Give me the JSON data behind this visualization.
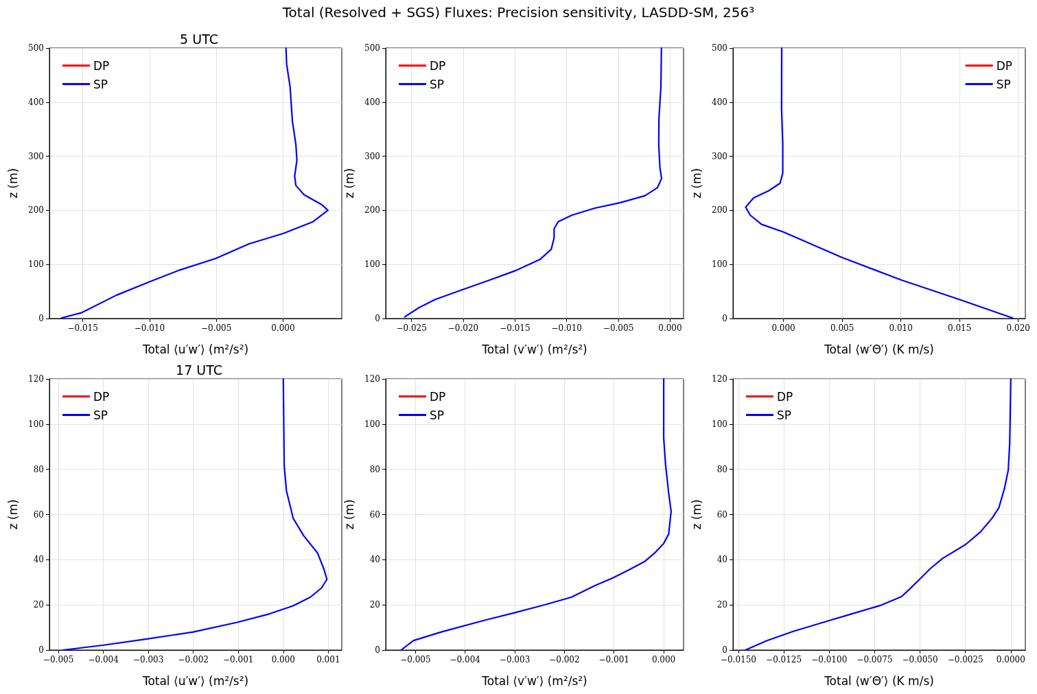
{
  "chart_data": [
    {
      "type": "line",
      "title": "5 UTC",
      "annotations": [
        "Total (Resolved + SGS) Fluxes: Precision sensitivity, LASDD-SM, 256³"
      ],
      "xlabel": "Total ⟨u′w′⟩ (m²/s²)",
      "ylabel": "z (m)",
      "xlim": [
        -0.0175,
        0.0044
      ],
      "ylim": [
        0,
        500
      ],
      "xticks": [
        {
          "value": -0.015,
          "label": "−0.015"
        },
        {
          "value": -0.01,
          "label": "−0.010"
        },
        {
          "value": -0.005,
          "label": "−0.005"
        },
        {
          "value": 0,
          "label": "0.000"
        }
      ],
      "yticks": [
        0,
        100,
        200,
        300,
        400,
        500
      ],
      "grid": true,
      "legend": "top left",
      "marker": "none",
      "line_style": "solid",
      "series": [
        {
          "name": "DP",
          "color": "#ff0000"
        },
        {
          "name": "SP",
          "color": "#0000ff",
          "x": [
            -0.0166,
            -0.01506,
            -0.01249,
            -0.01,
            -0.0077,
            -0.00504,
            -0.00255,
            0.0,
            0.00225,
            0.00336,
            0.00293,
            0.00156,
            0.00096,
            0.00087,
            0.00104,
            0.00096,
            0.0007,
            0.00053,
            0.00027,
            0.00022
          ],
          "values": [
            1,
            11,
            43,
            68,
            90,
            111,
            138,
            157,
            179,
            200,
            210,
            229,
            246,
            263,
            293,
            322,
            365,
            428,
            470,
            500
          ]
        }
      ]
    },
    {
      "type": "line",
      "xlabel": "Total ⟨v′w′⟩ (m²/s²)",
      "ylabel": "z (m)",
      "xlim": [
        -0.0275,
        0.0013
      ],
      "ylim": [
        0,
        500
      ],
      "xticks": [
        {
          "value": -0.025,
          "label": "−0.025"
        },
        {
          "value": -0.02,
          "label": "−0.020"
        },
        {
          "value": -0.015,
          "label": "−0.015"
        },
        {
          "value": -0.01,
          "label": "−0.010"
        },
        {
          "value": -0.005,
          "label": "−0.005"
        },
        {
          "value": 0,
          "label": "0.000"
        }
      ],
      "yticks": [
        0,
        100,
        200,
        300,
        400,
        500
      ],
      "grid": true,
      "legend": "top left",
      "marker": "none",
      "line_style": "solid",
      "series": [
        {
          "name": "DP",
          "color": "#ff0000"
        },
        {
          "name": "SP",
          "color": "#0000ff",
          "x": [
            -0.02566,
            -0.02429,
            -0.02275,
            -0.01999,
            -0.01745,
            -0.01502,
            -0.01259,
            -0.01149,
            -0.01122,
            -0.01122,
            -0.01082,
            -0.0095,
            -0.00729,
            -0.00486,
            -0.00243,
            -0.00122,
            -0.00082,
            -0.00099,
            -0.0011,
            -0.00108,
            -0.00089,
            -0.00084
          ],
          "values": [
            3,
            20,
            35,
            54,
            71,
            88,
            109,
            128,
            149,
            166,
            179,
            191,
            204,
            214,
            227,
            242,
            259,
            280,
            322,
            369,
            428,
            500
          ]
        }
      ]
    },
    {
      "type": "line",
      "xlabel": "Total ⟨w′Θ′⟩ (K m/s)",
      "ylabel": "z (m)",
      "xlim": [
        -0.0043,
        0.0206
      ],
      "ylim": [
        0,
        500
      ],
      "xticks": [
        {
          "value": 0,
          "label": "0.000"
        },
        {
          "value": 0.005,
          "label": "0.005"
        },
        {
          "value": 0.01,
          "label": "0.010"
        },
        {
          "value": 0.015,
          "label": "0.015"
        },
        {
          "value": 0.02,
          "label": "0.020"
        }
      ],
      "yticks": [
        0,
        100,
        200,
        300,
        400,
        500
      ],
      "grid": true,
      "legend": "top right",
      "marker": "none",
      "line_style": "solid",
      "series": [
        {
          "name": "DP",
          "color": "#ff0000"
        },
        {
          "name": "SP",
          "color": "#0000ff",
          "x": [
            0.01951,
            0.01502,
            0.01005,
            0.00498,
            0.0,
            -0.00186,
            -0.00283,
            -0.00322,
            -0.00254,
            -0.00127,
            -0.00029,
            -6e-05,
            -6e-05,
            -0.00016,
            -0.00015
          ],
          "values": [
            1,
            35,
            71,
            113,
            160,
            174,
            191,
            206,
            223,
            236,
            250,
            269,
            322,
            386,
            500
          ]
        }
      ]
    },
    {
      "type": "line",
      "title": "17 UTC",
      "xlabel": "Total ⟨u′w′⟩ (m²/s²)",
      "ylabel": "z (m)",
      "xlim": [
        -0.0052,
        0.0013
      ],
      "ylim": [
        0,
        120
      ],
      "xticks": [
        {
          "value": -0.005,
          "label": "−0.005"
        },
        {
          "value": -0.004,
          "label": "−0.004"
        },
        {
          "value": -0.003,
          "label": "−0.003"
        },
        {
          "value": -0.002,
          "label": "−0.002"
        },
        {
          "value": -0.001,
          "label": "−0.001"
        },
        {
          "value": 0,
          "label": "0.000"
        },
        {
          "value": 0.001,
          "label": "0.001"
        }
      ],
      "yticks": [
        0,
        20,
        40,
        60,
        80,
        100,
        120
      ],
      "grid": true,
      "legend": "top left",
      "marker": "none",
      "line_style": "solid",
      "series": [
        {
          "name": "DP",
          "color": "#ff0000"
        },
        {
          "name": "SP",
          "color": "#0000ff",
          "x": [
            -0.0049,
            -0.00399,
            -0.00301,
            -0.002,
            -0.00102,
            -0.00031,
            0.00022,
            0.0006,
            0.00085,
            0.00097,
            0.0009,
            0.00076,
            0.00045,
            0.00022,
            7e-05,
            2e-05,
            0.0
          ],
          "values": [
            0,
            2.2,
            5,
            8,
            12.3,
            16,
            19.6,
            23.4,
            27.5,
            31.3,
            36,
            43,
            50.7,
            58.3,
            70.5,
            81.6,
            120
          ]
        }
      ]
    },
    {
      "type": "line",
      "xlabel": "Total ⟨v′w′⟩ (m²/s²)",
      "ylabel": "z (m)",
      "xlim": [
        -0.0056,
        0.0004
      ],
      "ylim": [
        0,
        120
      ],
      "xticks": [
        {
          "value": -0.005,
          "label": "−0.005"
        },
        {
          "value": -0.004,
          "label": "−0.004"
        },
        {
          "value": -0.003,
          "label": "−0.003"
        },
        {
          "value": -0.002,
          "label": "−0.002"
        },
        {
          "value": -0.001,
          "label": "−0.001"
        },
        {
          "value": 0,
          "label": "0.000"
        }
      ],
      "yticks": [
        0,
        20,
        40,
        60,
        80,
        100,
        120
      ],
      "grid": true,
      "legend": "top left",
      "marker": "none",
      "line_style": "solid",
      "series": [
        {
          "name": "DP",
          "color": "#ff0000"
        },
        {
          "name": "SP",
          "color": "#0000ff",
          "x": [
            -0.00529,
            -0.00504,
            -0.00448,
            -0.00359,
            -0.00299,
            -0.00242,
            -0.00186,
            -0.00139,
            -0.00102,
            -0.00069,
            -0.00039,
            -0.00017,
            0.0,
            0.0001,
            0.00015,
            0.0001,
            4e-05,
            0.0,
            0.0
          ],
          "values": [
            0,
            4.2,
            8,
            13.3,
            16.6,
            19.9,
            23.4,
            28.5,
            32,
            35.6,
            39.1,
            43.2,
            47.2,
            51.3,
            61.4,
            69.5,
            81.6,
            93.7,
            120
          ]
        }
      ]
    },
    {
      "type": "line",
      "xlabel": "Total ⟨w′Θ′⟩ (K m/s)",
      "ylabel": "z (m)",
      "xlim": [
        -0.0153,
        0.0008
      ],
      "ylim": [
        0,
        120
      ],
      "xticks": [
        {
          "value": -0.015,
          "label": "−0.0150"
        },
        {
          "value": -0.0125,
          "label": "−0.0125"
        },
        {
          "value": -0.01,
          "label": "−0.0100"
        },
        {
          "value": -0.0075,
          "label": "−0.0075"
        },
        {
          "value": -0.005,
          "label": "−0.0050"
        },
        {
          "value": -0.0025,
          "label": "−0.0025"
        },
        {
          "value": 0,
          "label": "0.0000"
        }
      ],
      "yticks": [
        0,
        20,
        40,
        60,
        80,
        100,
        120
      ],
      "grid": true,
      "legend": "top left",
      "marker": "none",
      "line_style": "solid",
      "series": [
        {
          "name": "DP",
          "color": "#ff0000"
        },
        {
          "name": "SP",
          "color": "#0000ff",
          "x": [
            -0.01462,
            -0.01343,
            -0.01198,
            -0.01003,
            -0.00877,
            -0.0072,
            -0.00601,
            -0.00557,
            -0.005,
            -0.00444,
            -0.00375,
            -0.00249,
            -0.00167,
            -0.00104,
            -0.00066,
            -0.00035,
            -0.00014,
            -6e-05,
            0.0
          ],
          "values": [
            0,
            4.2,
            8.3,
            13,
            16,
            19.7,
            23.7,
            27,
            31.5,
            36,
            40.6,
            46.7,
            52.3,
            58.3,
            62.9,
            71.5,
            79.6,
            91.7,
            120
          ]
        }
      ]
    }
  ]
}
